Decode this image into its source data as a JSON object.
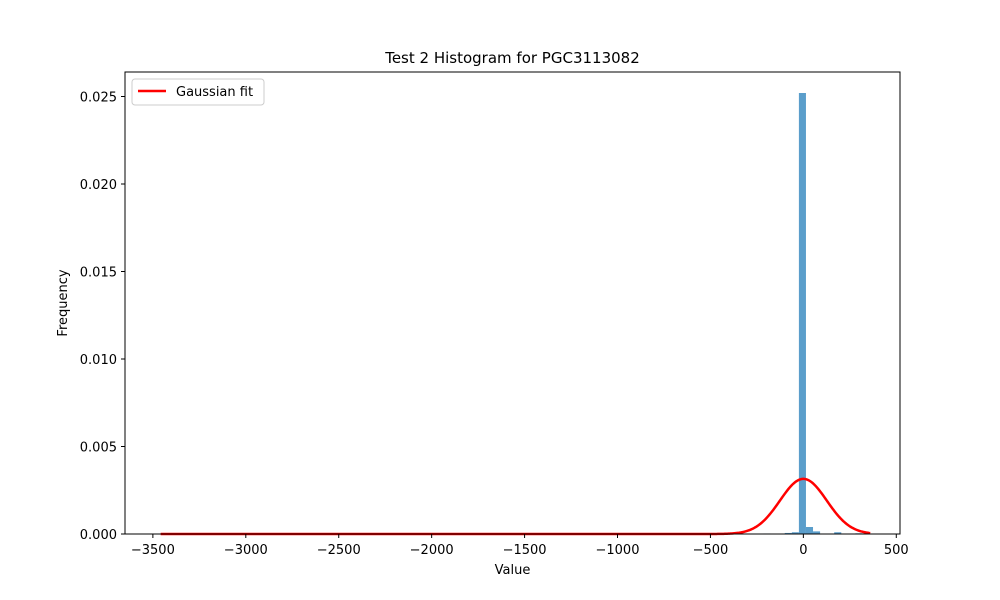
{
  "chart_data": {
    "type": "bar",
    "title": "Test 2 Histogram for PGC3113082",
    "xlabel": "Value",
    "ylabel": "Frequency",
    "xlim": [
      -3650,
      520
    ],
    "ylim": [
      0,
      0.0264
    ],
    "xticks": [
      -3500,
      -3000,
      -2500,
      -2000,
      -1500,
      -1000,
      -500,
      0,
      500
    ],
    "xtick_labels": [
      "−3500",
      "−3000",
      "−2500",
      "−2000",
      "−1500",
      "−1000",
      "−500",
      "0",
      "500"
    ],
    "yticks": [
      0,
      0.005,
      0.01,
      0.015,
      0.02,
      0.025
    ],
    "ytick_labels": [
      "0.000",
      "0.005",
      "0.010",
      "0.015",
      "0.020",
      "0.025"
    ],
    "grid": false,
    "legend": {
      "position": "upper-left",
      "entries": [
        "Gaussian fit"
      ]
    },
    "histogram": {
      "bin_width": 38,
      "bar_color": "#5b9ecb",
      "bins": [
        {
          "x_left": -3458,
          "value": 1e-05
        },
        {
          "x_left": -214,
          "value": 3e-05
        },
        {
          "x_left": -100,
          "value": 6e-05
        },
        {
          "x_left": -62,
          "value": 0.0001
        },
        {
          "x_left": -24,
          "value": 0.0252
        },
        {
          "x_left": 14,
          "value": 0.0004
        },
        {
          "x_left": 52,
          "value": 0.00015
        },
        {
          "x_left": 166,
          "value": 0.0001
        },
        {
          "x_left": 280,
          "value": 4e-05
        }
      ]
    },
    "series": [
      {
        "name": "Gaussian fit",
        "kind": "gaussian",
        "color": "#ff0000",
        "mean": 0,
        "std": 126,
        "peak": 0.00315,
        "x_range": [
          -3458,
          360
        ]
      }
    ]
  }
}
